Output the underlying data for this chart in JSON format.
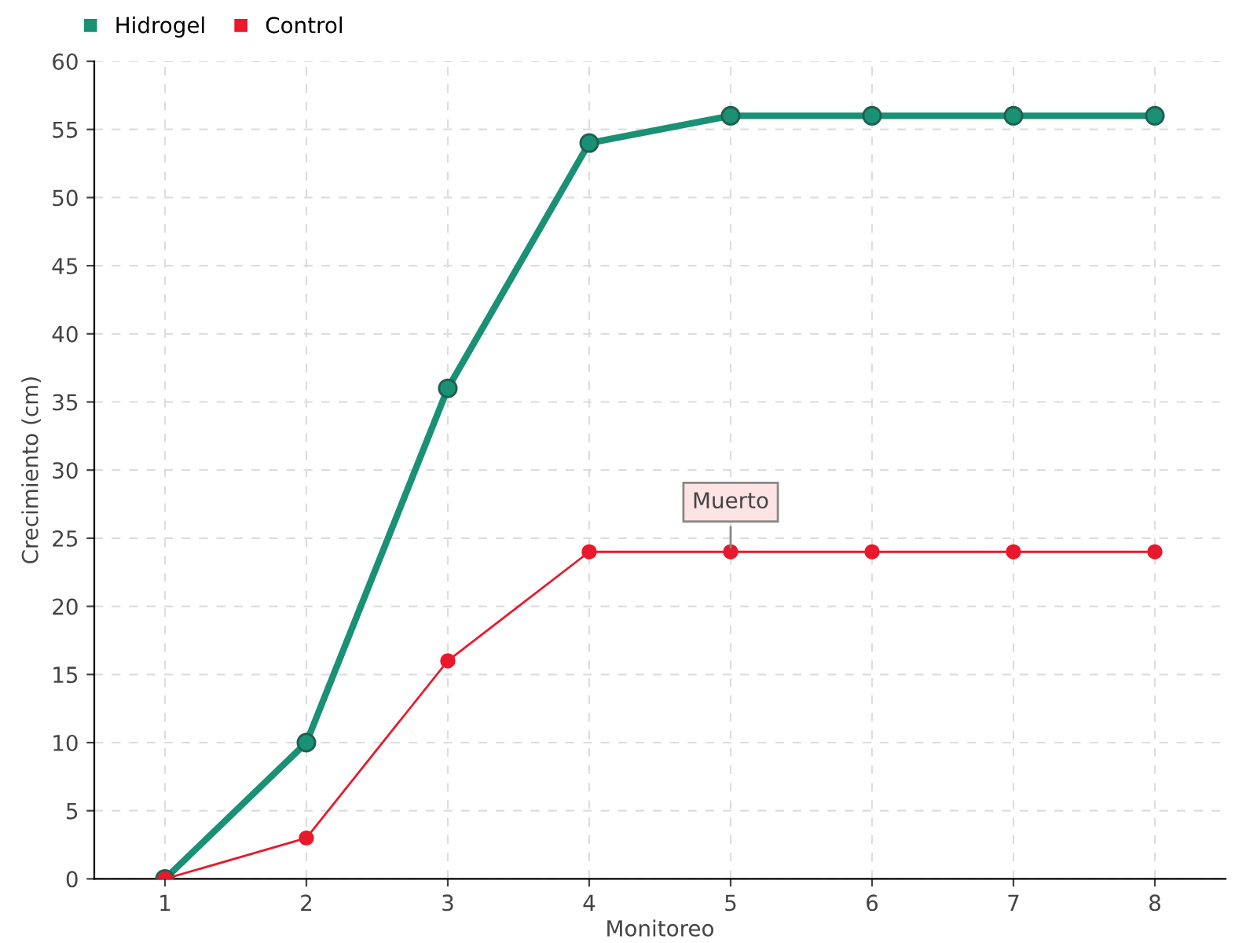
{
  "chart_data": {
    "type": "line",
    "xlabel": "Monitoreo",
    "ylabel": "Crecimiento (cm)",
    "categories": [
      "1",
      "2",
      "3",
      "4",
      "5",
      "6",
      "7",
      "8"
    ],
    "series": [
      {
        "name": "Hidrogel",
        "color": "#1a9075",
        "values": [
          0,
          10,
          36,
          54,
          56,
          56,
          56,
          56
        ]
      },
      {
        "name": "Control",
        "color": "#e8192c",
        "values": [
          0,
          3,
          16,
          24,
          24,
          24,
          24,
          24
        ]
      }
    ],
    "annotations": [
      {
        "text": "Muerto",
        "x": "5",
        "y": 24
      }
    ],
    "ylim": [
      0,
      60
    ],
    "yticks": [
      0,
      5,
      10,
      15,
      20,
      25,
      30,
      35,
      40,
      45,
      50,
      55,
      60
    ],
    "grid": true,
    "legend": "top left",
    "marker": "circle",
    "line_style": "solid"
  }
}
